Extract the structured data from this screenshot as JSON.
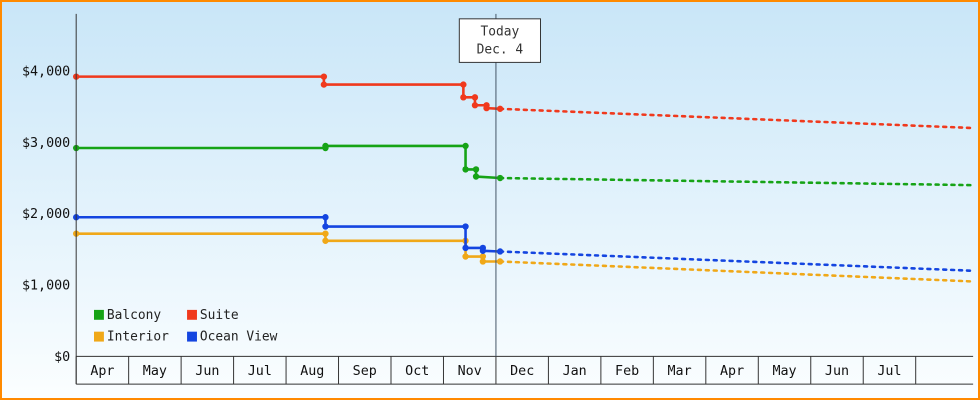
{
  "chart_data": {
    "type": "line",
    "today": {
      "lines": [
        "Today",
        "Dec. 4"
      ],
      "month_index": 8
    },
    "y_axis": {
      "max": 4800,
      "ticks": [
        {
          "value": 0,
          "label": "$0"
        },
        {
          "value": 1000,
          "label": "$1,000"
        },
        {
          "value": 2000,
          "label": "$2,000"
        },
        {
          "value": 3000,
          "label": "$3,000"
        },
        {
          "value": 4000,
          "label": "$4,000"
        }
      ]
    },
    "x_axis": {
      "months": [
        "Apr",
        "May",
        "Jun",
        "Jul",
        "Aug",
        "Sep",
        "Oct",
        "Nov",
        "Dec",
        "Jan",
        "Feb",
        "Mar",
        "Apr",
        "May",
        "Jun",
        "Jul"
      ]
    },
    "series": [
      {
        "name": "Balcony",
        "color": "#16a316",
        "solid": [
          [
            0,
            2920
          ],
          [
            4.75,
            2920
          ],
          [
            4.75,
            2950
          ],
          [
            7.42,
            2950
          ],
          [
            7.42,
            2620
          ],
          [
            7.62,
            2620
          ],
          [
            7.62,
            2520
          ],
          [
            8.08,
            2500
          ]
        ],
        "forecast": [
          [
            8.08,
            2500
          ],
          [
            17.09,
            2400
          ]
        ]
      },
      {
        "name": "Suite",
        "color": "#f0391d",
        "solid": [
          [
            0,
            3920
          ],
          [
            4.72,
            3920
          ],
          [
            4.72,
            3810
          ],
          [
            7.38,
            3810
          ],
          [
            7.38,
            3630
          ],
          [
            7.6,
            3630
          ],
          [
            7.6,
            3520
          ],
          [
            7.82,
            3520
          ],
          [
            7.82,
            3480
          ],
          [
            8.08,
            3470
          ]
        ],
        "forecast": [
          [
            8.08,
            3470
          ],
          [
            17.09,
            3200
          ]
        ]
      },
      {
        "name": "Interior",
        "color": "#f0a818",
        "solid": [
          [
            0,
            1720
          ],
          [
            4.75,
            1720
          ],
          [
            4.75,
            1620
          ],
          [
            7.42,
            1620
          ],
          [
            7.42,
            1400
          ],
          [
            7.75,
            1400
          ],
          [
            7.75,
            1330
          ],
          [
            8.08,
            1330
          ]
        ],
        "forecast": [
          [
            8.08,
            1330
          ],
          [
            17.09,
            1050
          ]
        ]
      },
      {
        "name": "Ocean View",
        "color": "#1445e0",
        "solid": [
          [
            0,
            1950
          ],
          [
            4.75,
            1950
          ],
          [
            4.75,
            1820
          ],
          [
            7.42,
            1820
          ],
          [
            7.42,
            1520
          ],
          [
            7.75,
            1520
          ],
          [
            7.75,
            1480
          ],
          [
            8.08,
            1470
          ]
        ],
        "forecast": [
          [
            8.08,
            1470
          ],
          [
            17.09,
            1200
          ]
        ]
      }
    ],
    "legend": {
      "rows": [
        [
          "Balcony",
          "Suite"
        ],
        [
          "Interior",
          "Ocean View"
        ]
      ]
    },
    "colors": {
      "frame_border": "#ff8a00",
      "axis": "#333333",
      "label_text": "#111111",
      "today_line": "#445566",
      "today_box_bg": "#ffffff",
      "today_box_border": "#333333"
    }
  }
}
